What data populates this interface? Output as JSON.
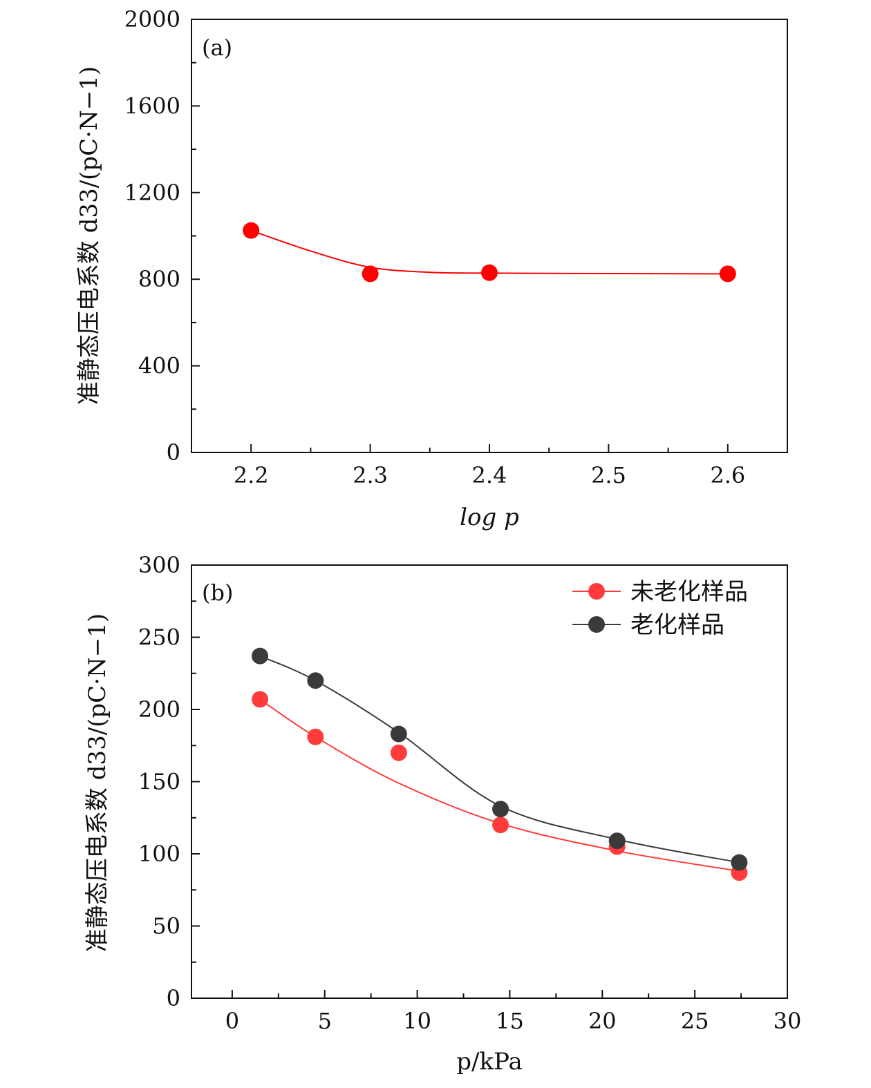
{
  "chart_data": [
    {
      "type": "line",
      "panel_label": "(a)",
      "xlabel": "log p",
      "ylabel": "准静态压电系数 d33/(pC·N−1)",
      "xlim": [
        2.15,
        2.65
      ],
      "ylim": [
        0,
        2000
      ],
      "xticks": [
        2.2,
        2.3,
        2.4,
        2.5,
        2.6
      ],
      "yticks": [
        0,
        400,
        800,
        1200,
        1600,
        2000
      ],
      "xtick_labels": [
        "2.2",
        "2.3",
        "2.4",
        "2.5",
        "2.6"
      ],
      "ytick_labels": [
        "0",
        "400",
        "800",
        "1200",
        "1600",
        "2000"
      ],
      "series": [
        {
          "name": "",
          "color": "#ff0000",
          "x": [
            2.2,
            2.3,
            2.4,
            2.6
          ],
          "values": [
            1025,
            825,
            830,
            825
          ],
          "fit_x": [
            2.2,
            2.25,
            2.3,
            2.35,
            2.4,
            2.5,
            2.6
          ],
          "fit_y": [
            1025,
            930,
            855,
            832,
            828,
            826,
            825
          ]
        }
      ]
    },
    {
      "type": "line",
      "panel_label": "(b)",
      "xlabel": "p/kPa",
      "ylabel": "准静态压电系数 d33/(pC·N−1)",
      "xlim": [
        -2.2,
        30
      ],
      "ylim": [
        0,
        300
      ],
      "xticks": [
        0,
        5,
        10,
        15,
        20,
        25,
        30
      ],
      "yticks": [
        0,
        50,
        100,
        150,
        200,
        250,
        300
      ],
      "xtick_labels": [
        "0",
        "5",
        "10",
        "15",
        "20",
        "25",
        "30"
      ],
      "ytick_labels": [
        "0",
        "50",
        "100",
        "150",
        "200",
        "250",
        "300"
      ],
      "legend_position": "top-right",
      "series": [
        {
          "name": "未老化样品",
          "color": "#ff3b3b",
          "x": [
            1.5,
            4.5,
            9.0,
            14.5,
            20.8,
            27.4
          ],
          "values": [
            207,
            181,
            170,
            120,
            105,
            87
          ],
          "fit_x": [
            1.5,
            4.5,
            9.0,
            14.5,
            20.8,
            27.4
          ],
          "fit_y": [
            207,
            181,
            149,
            121,
            102,
            88
          ]
        },
        {
          "name": "老化样品",
          "color": "#3a3a3a",
          "x": [
            1.5,
            4.5,
            9.0,
            14.5,
            20.8,
            27.4
          ],
          "values": [
            237,
            220,
            183,
            131,
            109,
            94
          ],
          "fit_x": [
            1.5,
            4.5,
            9.0,
            14.5,
            20.8,
            27.4
          ],
          "fit_y": [
            237,
            220,
            184,
            133,
            110,
            94
          ]
        }
      ]
    }
  ]
}
